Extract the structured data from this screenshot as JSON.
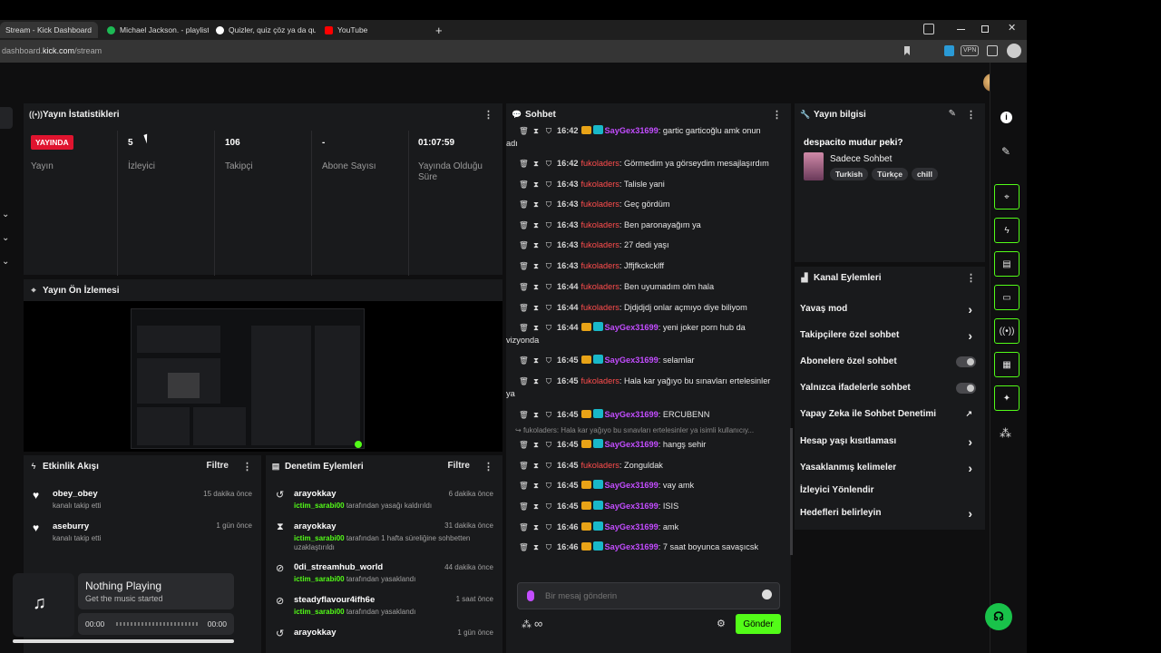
{
  "browser": {
    "tabs": [
      {
        "title": "Stream - Kick Dashboard",
        "active": true
      },
      {
        "title": "Michael Jackson. - playlist b",
        "active": false
      },
      {
        "title": "Quizler, quiz çöz ya da quiz",
        "active": false
      },
      {
        "title": "YouTube",
        "active": false
      }
    ],
    "new_tab": "+",
    "url_prefix": "dashboard.",
    "url_domain": "kick.com",
    "url_path": "/stream",
    "vpn_label": "VPN"
  },
  "stats": {
    "title": "Yayın İstatistikleri",
    "live_badge": "YAYINDA",
    "live_label": "Yayın",
    "viewers_value": "5",
    "viewers_label": "İzleyici",
    "followers_value": "106",
    "followers_label": "Takipçi",
    "subs_value": "-",
    "subs_label": "Abone Sayısı",
    "uptime_value": "01:07:59",
    "uptime_label": "Yayında Olduğu Süre"
  },
  "preview": {
    "title": "Yayın Ön İzlemesi"
  },
  "activity": {
    "title": "Etkinlik Akışı",
    "filter": "Filtre",
    "items": [
      {
        "name": "obey_obey",
        "desc": "kanalı takip etti",
        "time": "15 dakika önce"
      },
      {
        "name": "aseburry",
        "desc": "kanalı takip etti",
        "time": "1 gün önce"
      }
    ]
  },
  "moderation": {
    "title": "Denetim Eylemleri",
    "filter": "Filtre",
    "items": [
      {
        "name": "arayokkay",
        "mod": "ictim_sarabi00",
        "desc": " tarafından yasağı kaldırıldı",
        "time": "6 dakika önce"
      },
      {
        "name": "arayokkay",
        "mod": "ictim_sarabi00",
        "desc": " tarafından 1 hafta süreliğine sohbetten uzaklaştırıldı",
        "time": "31 dakika önce"
      },
      {
        "name": "0di_streamhub_world",
        "mod": "ictim_sarabi00",
        "desc": " tarafından yasaklandı",
        "time": "44 dakika önce"
      },
      {
        "name": "steadyflavour4ifh6e",
        "mod": "ictim_sarabi00",
        "desc": " tarafından yasaklandı",
        "time": "1 saat önce"
      },
      {
        "name": "arayokkay",
        "mod": "",
        "desc": "",
        "time": "1 gün önce"
      }
    ]
  },
  "player": {
    "title": "Nothing Playing",
    "subtitle": "Get the music started",
    "time_start": "00:00",
    "time_end": "00:00"
  },
  "chat": {
    "title": "Sohbet",
    "messages": [
      {
        "time": "16:42",
        "user": "SayGex31699",
        "badges": true,
        "text": ": gartic garticoğlu amk onun",
        "cont": "adı"
      },
      {
        "time": "16:42",
        "user": "fukoladers",
        "badges": false,
        "text": ": Görmedim ya görseydim mesajlaşırdım",
        "cont": ""
      },
      {
        "time": "16:43",
        "user": "fukoladers",
        "badges": false,
        "text": ": Talisle yani",
        "cont": ""
      },
      {
        "time": "16:43",
        "user": "fukoladers",
        "badges": false,
        "text": ": Geç gördüm",
        "cont": ""
      },
      {
        "time": "16:43",
        "user": "fukoladers",
        "badges": false,
        "text": ": Ben paronayağım ya",
        "cont": ""
      },
      {
        "time": "16:43",
        "user": "fukoladers",
        "badges": false,
        "text": ": 27 dedi yaşı",
        "cont": ""
      },
      {
        "time": "16:43",
        "user": "fukoladers",
        "badges": false,
        "text": ": Jffjfkckcklff",
        "cont": ""
      },
      {
        "time": "16:44",
        "user": "fukoladers",
        "badges": false,
        "text": ": Ben uyumadım olm hala",
        "cont": ""
      },
      {
        "time": "16:44",
        "user": "fukoladers",
        "badges": false,
        "text": ": Djdjdjdj onlar açmıyo diye biliyom",
        "cont": ""
      },
      {
        "time": "16:44",
        "user": "SayGex31699",
        "badges": true,
        "text": ": yeni joker porn hub da",
        "cont": "vizyonda"
      },
      {
        "time": "16:45",
        "user": "SayGex31699",
        "badges": true,
        "text": ": selamlar",
        "cont": ""
      },
      {
        "time": "16:45",
        "user": "fukoladers",
        "badges": false,
        "text": ": Hala kar yağıyo bu sınavları ertelesinler",
        "cont": "ya"
      },
      {
        "time": "16:45",
        "user": "SayGex31699",
        "badges": true,
        "text": ": ERCUBENN",
        "cont": ""
      },
      {
        "time": "16:45",
        "user": "SayGex31699",
        "badges": true,
        "text": ": hangş sehir",
        "cont": ""
      },
      {
        "time": "16:45",
        "user": "fukoladers",
        "badges": false,
        "text": ": Zonguldak",
        "cont": ""
      },
      {
        "time": "16:45",
        "user": "SayGex31699",
        "badges": true,
        "text": ": vay amk",
        "cont": ""
      },
      {
        "time": "16:45",
        "user": "SayGex31699",
        "badges": true,
        "text": ": ISIS",
        "cont": ""
      },
      {
        "time": "16:46",
        "user": "SayGex31699",
        "badges": true,
        "text": ": amk",
        "cont": ""
      },
      {
        "time": "16:46",
        "user": "SayGex31699",
        "badges": true,
        "text": ": 7 saat boyunca savaşıcsk",
        "cont": ""
      }
    ],
    "reply_preview": "fukoladers: Hala kar yağıyo bu sınavları ertelesinler ya isimli kullanıcıy...",
    "input_placeholder": "Bir mesaj gönderin",
    "send_label": "Gönder",
    "infinity": "∞"
  },
  "info": {
    "title": "Yayın bilgisi",
    "stream_title": "despacito mudur peki?",
    "category": "Sadece Sohbet",
    "tags": [
      "Turkish",
      "Türkçe",
      "chill"
    ]
  },
  "actions": {
    "title": "Kanal Eylemleri",
    "items": [
      {
        "label": "Yavaş mod",
        "control": "chevron"
      },
      {
        "label": "Takipçilere özel sohbet",
        "control": "chevron"
      },
      {
        "label": "Abonelere özel sohbet",
        "control": "toggle"
      },
      {
        "label": "Yalnızca ifadelerle sohbet",
        "control": "toggle"
      },
      {
        "label": "Yapay Zeka ile Sohbet Denetimi",
        "control": "external"
      },
      {
        "label": "Hesap yaşı kısıtlaması",
        "control": "chevron"
      },
      {
        "label": "Yasaklanmış kelimeler",
        "control": "chevron"
      },
      {
        "label": "İzleyici Yönlendir",
        "control": "none"
      },
      {
        "label": "Hedefleri belirleyin",
        "control": "chevron"
      }
    ]
  },
  "colors": {
    "accent": "#53fc18",
    "live": "#e0142f",
    "panel": "#191a1c"
  }
}
